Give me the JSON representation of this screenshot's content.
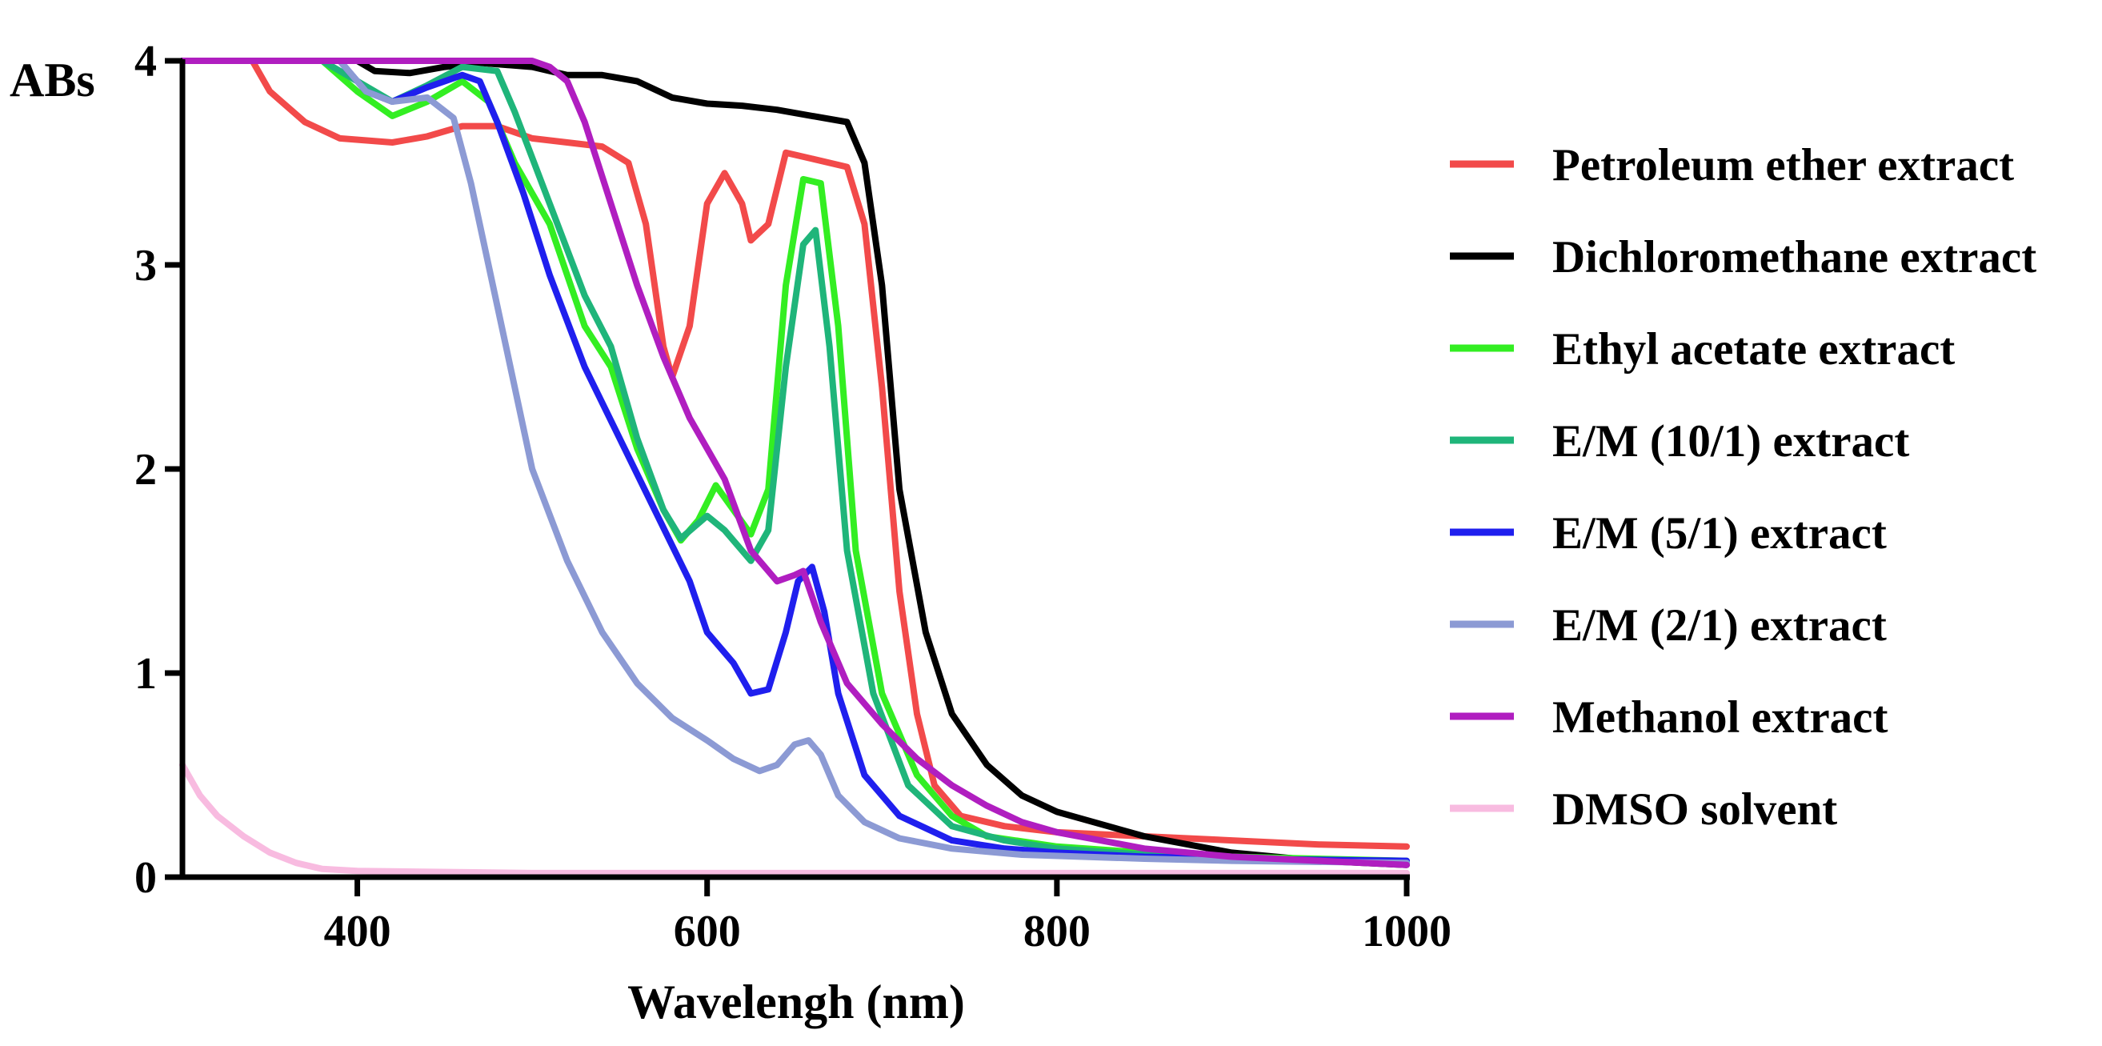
{
  "chart_data": {
    "type": "line",
    "title": "",
    "xlabel": "Wavelengh (nm)",
    "ylabel": "ABs",
    "xlim": [
      300,
      1000
    ],
    "ylim": [
      0,
      4
    ],
    "xticks": [
      400,
      600,
      800,
      1000
    ],
    "yticks": [
      0,
      1,
      2,
      3,
      4
    ],
    "grid": false,
    "legend_position": "right",
    "series": [
      {
        "name": "Petroleum ether extract",
        "color": "#f24a4a",
        "points": [
          [
            300,
            4.0
          ],
          [
            340,
            4.0
          ],
          [
            350,
            3.85
          ],
          [
            370,
            3.7
          ],
          [
            390,
            3.62
          ],
          [
            420,
            3.6
          ],
          [
            440,
            3.63
          ],
          [
            460,
            3.68
          ],
          [
            480,
            3.68
          ],
          [
            500,
            3.62
          ],
          [
            520,
            3.6
          ],
          [
            540,
            3.58
          ],
          [
            555,
            3.5
          ],
          [
            565,
            3.2
          ],
          [
            575,
            2.6
          ],
          [
            580,
            2.45
          ],
          [
            590,
            2.7
          ],
          [
            600,
            3.3
          ],
          [
            610,
            3.45
          ],
          [
            620,
            3.3
          ],
          [
            625,
            3.12
          ],
          [
            635,
            3.2
          ],
          [
            645,
            3.55
          ],
          [
            660,
            3.52
          ],
          [
            680,
            3.48
          ],
          [
            690,
            3.2
          ],
          [
            700,
            2.4
          ],
          [
            710,
            1.4
          ],
          [
            720,
            0.8
          ],
          [
            730,
            0.45
          ],
          [
            745,
            0.3
          ],
          [
            770,
            0.25
          ],
          [
            800,
            0.22
          ],
          [
            850,
            0.2
          ],
          [
            900,
            0.18
          ],
          [
            950,
            0.16
          ],
          [
            1000,
            0.15
          ]
        ]
      },
      {
        "name": "Dichloromethane extract",
        "color": "#000000",
        "points": [
          [
            300,
            4.0
          ],
          [
            400,
            4.0
          ],
          [
            410,
            3.95
          ],
          [
            430,
            3.94
          ],
          [
            450,
            3.97
          ],
          [
            470,
            3.99
          ],
          [
            500,
            3.97
          ],
          [
            520,
            3.93
          ],
          [
            540,
            3.93
          ],
          [
            560,
            3.9
          ],
          [
            580,
            3.82
          ],
          [
            600,
            3.79
          ],
          [
            620,
            3.78
          ],
          [
            640,
            3.76
          ],
          [
            660,
            3.73
          ],
          [
            680,
            3.7
          ],
          [
            690,
            3.5
          ],
          [
            700,
            2.9
          ],
          [
            710,
            1.9
          ],
          [
            725,
            1.2
          ],
          [
            740,
            0.8
          ],
          [
            760,
            0.55
          ],
          [
            780,
            0.4
          ],
          [
            800,
            0.32
          ],
          [
            850,
            0.2
          ],
          [
            900,
            0.12
          ],
          [
            950,
            0.08
          ],
          [
            1000,
            0.06
          ]
        ]
      },
      {
        "name": "Ethyl acetate extract",
        "color": "#33ee22",
        "points": [
          [
            300,
            4.0
          ],
          [
            380,
            4.0
          ],
          [
            400,
            3.85
          ],
          [
            420,
            3.73
          ],
          [
            440,
            3.8
          ],
          [
            460,
            3.9
          ],
          [
            475,
            3.8
          ],
          [
            490,
            3.5
          ],
          [
            510,
            3.2
          ],
          [
            530,
            2.7
          ],
          [
            545,
            2.5
          ],
          [
            560,
            2.1
          ],
          [
            575,
            1.8
          ],
          [
            585,
            1.65
          ],
          [
            595,
            1.75
          ],
          [
            605,
            1.92
          ],
          [
            615,
            1.8
          ],
          [
            625,
            1.68
          ],
          [
            635,
            1.9
          ],
          [
            645,
            2.9
          ],
          [
            655,
            3.42
          ],
          [
            665,
            3.4
          ],
          [
            675,
            2.7
          ],
          [
            685,
            1.6
          ],
          [
            700,
            0.9
          ],
          [
            720,
            0.5
          ],
          [
            740,
            0.3
          ],
          [
            760,
            0.2
          ],
          [
            800,
            0.15
          ],
          [
            850,
            0.12
          ],
          [
            900,
            0.1
          ],
          [
            1000,
            0.08
          ]
        ]
      },
      {
        "name": "E/M (10/1) extract",
        "color": "#1fb57a",
        "points": [
          [
            300,
            4.0
          ],
          [
            380,
            4.0
          ],
          [
            400,
            3.9
          ],
          [
            420,
            3.8
          ],
          [
            440,
            3.88
          ],
          [
            460,
            3.97
          ],
          [
            480,
            3.95
          ],
          [
            490,
            3.75
          ],
          [
            510,
            3.3
          ],
          [
            530,
            2.85
          ],
          [
            545,
            2.6
          ],
          [
            560,
            2.15
          ],
          [
            575,
            1.8
          ],
          [
            585,
            1.66
          ],
          [
            600,
            1.77
          ],
          [
            610,
            1.7
          ],
          [
            625,
            1.55
          ],
          [
            635,
            1.7
          ],
          [
            645,
            2.5
          ],
          [
            655,
            3.1
          ],
          [
            662,
            3.17
          ],
          [
            670,
            2.6
          ],
          [
            680,
            1.6
          ],
          [
            695,
            0.9
          ],
          [
            715,
            0.45
          ],
          [
            740,
            0.25
          ],
          [
            770,
            0.18
          ],
          [
            800,
            0.14
          ],
          [
            850,
            0.11
          ],
          [
            900,
            0.09
          ],
          [
            1000,
            0.07
          ]
        ]
      },
      {
        "name": "E/M (5/1) extract",
        "color": "#1f1fee",
        "points": [
          [
            300,
            4.0
          ],
          [
            390,
            4.0
          ],
          [
            405,
            3.85
          ],
          [
            420,
            3.8
          ],
          [
            440,
            3.87
          ],
          [
            460,
            3.93
          ],
          [
            470,
            3.9
          ],
          [
            480,
            3.7
          ],
          [
            495,
            3.35
          ],
          [
            510,
            2.95
          ],
          [
            530,
            2.5
          ],
          [
            550,
            2.15
          ],
          [
            570,
            1.8
          ],
          [
            590,
            1.45
          ],
          [
            600,
            1.2
          ],
          [
            615,
            1.05
          ],
          [
            625,
            0.9
          ],
          [
            635,
            0.92
          ],
          [
            645,
            1.2
          ],
          [
            652,
            1.45
          ],
          [
            660,
            1.52
          ],
          [
            667,
            1.3
          ],
          [
            675,
            0.9
          ],
          [
            690,
            0.5
          ],
          [
            710,
            0.3
          ],
          [
            740,
            0.18
          ],
          [
            770,
            0.14
          ],
          [
            800,
            0.12
          ],
          [
            850,
            0.1
          ],
          [
            900,
            0.09
          ],
          [
            1000,
            0.08
          ]
        ]
      },
      {
        "name": "E/M (2/1) extract",
        "color": "#8c9ad4",
        "points": [
          [
            300,
            4.0
          ],
          [
            390,
            4.0
          ],
          [
            405,
            3.85
          ],
          [
            420,
            3.8
          ],
          [
            440,
            3.82
          ],
          [
            455,
            3.72
          ],
          [
            465,
            3.4
          ],
          [
            475,
            3.0
          ],
          [
            485,
            2.6
          ],
          [
            500,
            2.0
          ],
          [
            520,
            1.55
          ],
          [
            540,
            1.2
          ],
          [
            560,
            0.95
          ],
          [
            580,
            0.78
          ],
          [
            600,
            0.67
          ],
          [
            615,
            0.58
          ],
          [
            630,
            0.52
          ],
          [
            640,
            0.55
          ],
          [
            650,
            0.65
          ],
          [
            658,
            0.67
          ],
          [
            665,
            0.6
          ],
          [
            675,
            0.4
          ],
          [
            690,
            0.27
          ],
          [
            710,
            0.19
          ],
          [
            740,
            0.14
          ],
          [
            780,
            0.11
          ],
          [
            850,
            0.09
          ],
          [
            900,
            0.08
          ],
          [
            1000,
            0.07
          ]
        ]
      },
      {
        "name": "Methanol extract",
        "color": "#b01ec0",
        "points": [
          [
            300,
            4.0
          ],
          [
            500,
            4.0
          ],
          [
            510,
            3.97
          ],
          [
            520,
            3.9
          ],
          [
            530,
            3.7
          ],
          [
            545,
            3.3
          ],
          [
            560,
            2.9
          ],
          [
            575,
            2.55
          ],
          [
            590,
            2.25
          ],
          [
            610,
            1.95
          ],
          [
            625,
            1.6
          ],
          [
            640,
            1.45
          ],
          [
            650,
            1.48
          ],
          [
            655,
            1.5
          ],
          [
            665,
            1.25
          ],
          [
            680,
            0.95
          ],
          [
            700,
            0.75
          ],
          [
            720,
            0.58
          ],
          [
            740,
            0.45
          ],
          [
            760,
            0.35
          ],
          [
            780,
            0.27
          ],
          [
            800,
            0.22
          ],
          [
            850,
            0.14
          ],
          [
            900,
            0.1
          ],
          [
            950,
            0.08
          ],
          [
            1000,
            0.06
          ]
        ]
      },
      {
        "name": "DMSO solvent",
        "color": "#f8bbe0",
        "points": [
          [
            300,
            0.55
          ],
          [
            310,
            0.4
          ],
          [
            320,
            0.3
          ],
          [
            335,
            0.2
          ],
          [
            350,
            0.12
          ],
          [
            365,
            0.07
          ],
          [
            380,
            0.04
          ],
          [
            400,
            0.03
          ],
          [
            500,
            0.02
          ],
          [
            1000,
            0.02
          ]
        ]
      }
    ]
  }
}
